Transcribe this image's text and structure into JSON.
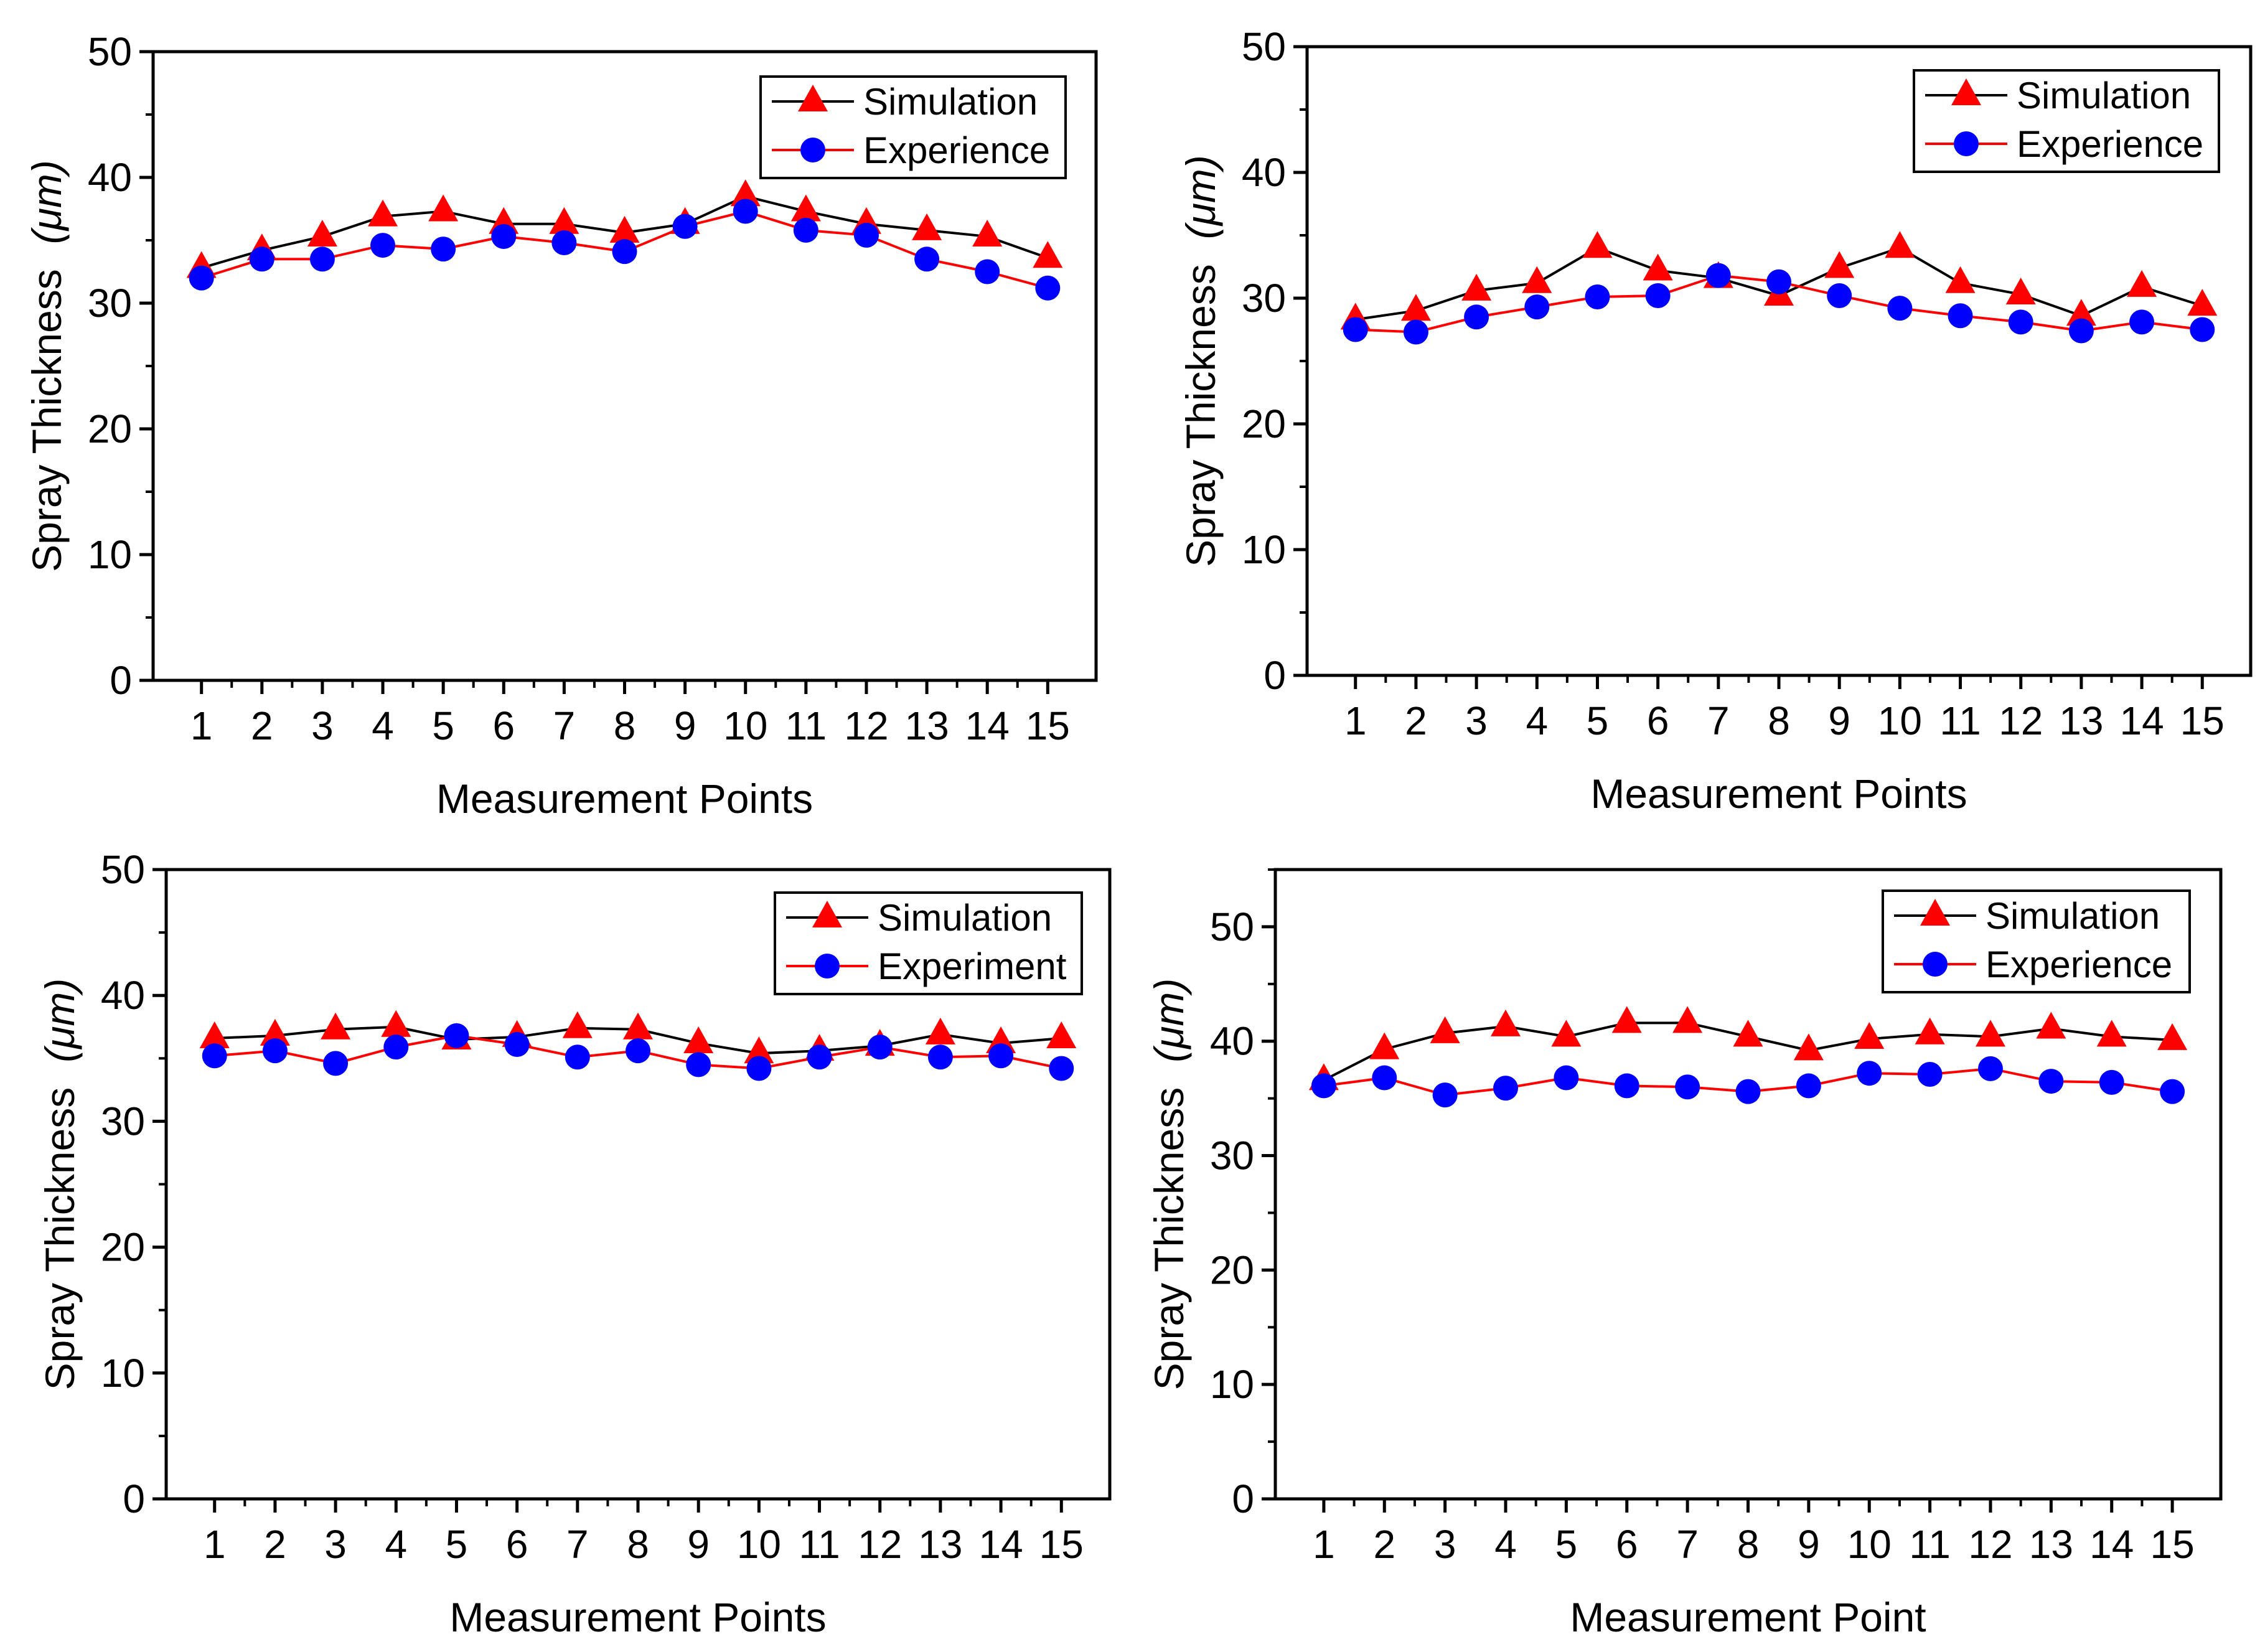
{
  "chart_data": [
    {
      "type": "line",
      "title": "",
      "xlabel": "Measurement Points",
      "ylabel": "Spray Thickness",
      "ylabel_unit": "(μm)",
      "categories": [
        "1",
        "2",
        "3",
        "4",
        "5",
        "6",
        "7",
        "8",
        "9",
        "10",
        "11",
        "12",
        "13",
        "14",
        "15"
      ],
      "ylim": [
        0,
        50
      ],
      "yticks": [
        "0",
        "10",
        "20",
        "30",
        "40",
        "50"
      ],
      "legend_position": "top-right",
      "grid": false,
      "series": [
        {
          "name": "Simulation",
          "color": "#ff0000",
          "line_color": "#000000",
          "marker": "triangle",
          "values": [
            32.8,
            34.2,
            35.3,
            36.9,
            37.3,
            36.3,
            36.3,
            35.6,
            36.3,
            38.5,
            37.3,
            36.3,
            35.8,
            35.3,
            33.6
          ]
        },
        {
          "name": "Experience",
          "color": "#0000ff",
          "line_color": "#ff0000",
          "marker": "circle",
          "values": [
            32.0,
            33.5,
            33.5,
            34.6,
            34.3,
            35.3,
            34.8,
            34.1,
            36.1,
            37.3,
            35.8,
            35.4,
            33.5,
            32.5,
            31.2
          ]
        }
      ]
    },
    {
      "type": "line",
      "title": "",
      "xlabel": "Measurement Points",
      "ylabel": "Spray Thickness",
      "ylabel_unit": "(μm)",
      "categories": [
        "1",
        "2",
        "3",
        "4",
        "5",
        "6",
        "7",
        "8",
        "9",
        "10",
        "11",
        "12",
        "13",
        "14",
        "15"
      ],
      "ylim": [
        0,
        50
      ],
      "yticks": [
        "0",
        "10",
        "20",
        "30",
        "40",
        "50"
      ],
      "legend_position": "top-right",
      "grid": false,
      "series": [
        {
          "name": "Simulation",
          "color": "#ff0000",
          "line_color": "#000000",
          "marker": "triangle",
          "values": [
            28.3,
            29.0,
            30.6,
            31.2,
            34.0,
            32.2,
            31.6,
            30.2,
            32.4,
            34.0,
            31.2,
            30.3,
            28.6,
            30.9,
            29.4
          ]
        },
        {
          "name": "Experience",
          "color": "#0000ff",
          "line_color": "#ff0000",
          "marker": "circle",
          "values": [
            27.5,
            27.3,
            28.5,
            29.3,
            30.1,
            30.2,
            31.8,
            31.3,
            30.2,
            29.2,
            28.6,
            28.1,
            27.4,
            28.1,
            27.5
          ]
        }
      ]
    },
    {
      "type": "line",
      "title": "",
      "xlabel": "Measurement Points",
      "ylabel": "Spray Thickness",
      "ylabel_unit": "(μm)",
      "categories": [
        "1",
        "2",
        "3",
        "4",
        "5",
        "6",
        "7",
        "8",
        "9",
        "10",
        "11",
        "12",
        "13",
        "14",
        "15"
      ],
      "ylim": [
        0,
        50
      ],
      "yticks": [
        "0",
        "10",
        "20",
        "30",
        "40",
        "50"
      ],
      "legend_position": "top-right",
      "grid": false,
      "series": [
        {
          "name": "Simulation",
          "color": "#ff0000",
          "line_color": "#000000",
          "marker": "triangle",
          "values": [
            36.6,
            36.8,
            37.3,
            37.5,
            36.5,
            36.7,
            37.4,
            37.3,
            36.2,
            35.4,
            35.6,
            36.0,
            36.9,
            36.2,
            36.6
          ]
        },
        {
          "name": "Experiment",
          "color": "#0000ff",
          "line_color": "#ff0000",
          "marker": "circle",
          "values": [
            35.2,
            35.6,
            34.6,
            35.9,
            36.8,
            36.1,
            35.1,
            35.6,
            34.5,
            34.2,
            35.1,
            35.9,
            35.1,
            35.2,
            34.2
          ]
        }
      ]
    },
    {
      "type": "line",
      "title": "",
      "xlabel": "Measurement Point",
      "ylabel": "Spray Thickness",
      "ylabel_unit": "(μm)",
      "categories": [
        "1",
        "2",
        "3",
        "4",
        "5",
        "6",
        "7",
        "8",
        "9",
        "10",
        "11",
        "12",
        "13",
        "14",
        "15"
      ],
      "ylim": [
        0,
        55
      ],
      "yticks": [
        "0",
        "10",
        "20",
        "30",
        "40",
        "50"
      ],
      "legend_position": "top-right",
      "grid": false,
      "series": [
        {
          "name": "Simulation",
          "color": "#ff0000",
          "line_color": "#000000",
          "marker": "triangle",
          "values": [
            36.6,
            39.3,
            40.7,
            41.3,
            40.4,
            41.6,
            41.6,
            40.4,
            39.2,
            40.2,
            40.6,
            40.4,
            41.1,
            40.4,
            40.1
          ]
        },
        {
          "name": "Experience",
          "color": "#0000ff",
          "line_color": "#ff0000",
          "marker": "circle",
          "values": [
            36.1,
            36.8,
            35.3,
            35.9,
            36.8,
            36.1,
            36.0,
            35.6,
            36.1,
            37.2,
            37.1,
            37.6,
            36.5,
            36.4,
            35.6
          ]
        }
      ]
    }
  ]
}
